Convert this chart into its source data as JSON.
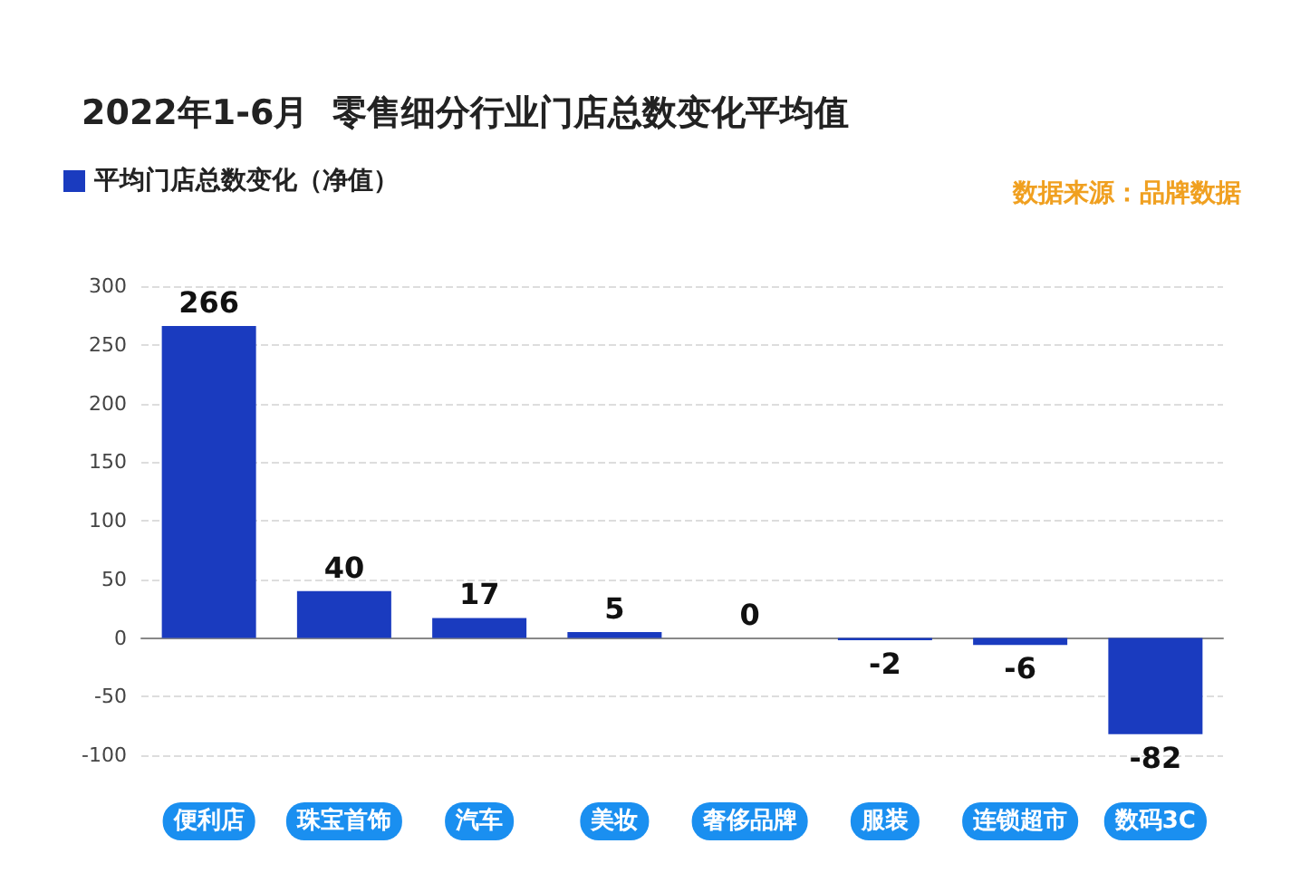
{
  "chart_data": {
    "type": "bar",
    "title": "2022年1-6月  零售细分行业门店总数变化平均值",
    "annotations": [
      "数据来源：品牌数据"
    ],
    "categories": [
      "便利店",
      "珠宝首饰",
      "汽车",
      "美妆",
      "奢侈品牌",
      "服装",
      "连锁超市",
      "数码3C"
    ],
    "series": [
      {
        "name": "平均门店总数变化（净值）",
        "color": "#1a3bbf",
        "values": [
          266,
          40,
          17,
          5,
          0,
          -2,
          -6,
          -82
        ]
      }
    ],
    "ylim": [
      -100,
      300
    ],
    "yticks": [
      -100,
      -50,
      0,
      50,
      100,
      150,
      200,
      250,
      300
    ],
    "grid": "y",
    "legend": "top left",
    "data_labels": true
  }
}
